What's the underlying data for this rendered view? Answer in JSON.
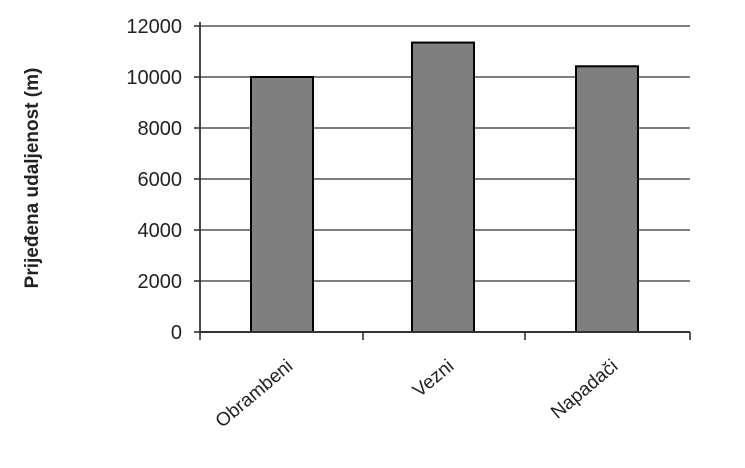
{
  "chart_data": {
    "type": "bar",
    "categories": [
      "Obrambeni",
      "Vezni",
      "Napadači"
    ],
    "values": [
      10000,
      11350,
      10420
    ],
    "ylabel": "Prijeđena udaljenost  (m)",
    "xlabel": "",
    "ylim": [
      0,
      12000
    ],
    "yticks": [
      0,
      2000,
      4000,
      6000,
      8000,
      10000,
      12000
    ],
    "grid": true,
    "legend": "none",
    "colors": {
      "bar": "#7f7f7f",
      "bar_edge": "#000000",
      "grid": "#555555",
      "axis": "#333333"
    }
  }
}
